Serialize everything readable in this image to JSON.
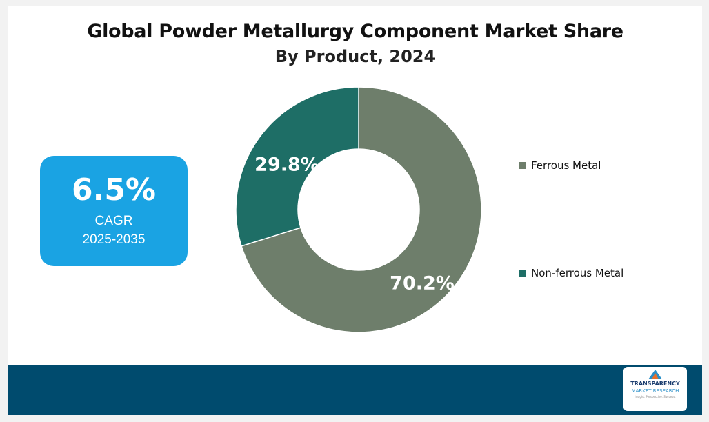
{
  "chart_data": {
    "type": "pie",
    "title": "Global Powder Metallurgy Component Market Share",
    "subtitle": "By Product, 2024",
    "slices": [
      {
        "name": "Ferrous Metal",
        "value": 70.2,
        "label": "70.2%",
        "color": "#6e7e6b"
      },
      {
        "name": "Non-ferrous Metal",
        "value": 29.8,
        "label": "29.8%",
        "color": "#1e6e66"
      }
    ],
    "legend_position": "right"
  },
  "cagr": {
    "value": "6.5%",
    "label": "CAGR",
    "period": "2025-2035",
    "color": "#1aa3e3"
  },
  "footer": {
    "color": "#004b6e"
  },
  "logo": {
    "line1": "TRANSPARENCY",
    "line2": "MARKET RESEARCH",
    "line3": "Insight. Perspective. Success."
  }
}
